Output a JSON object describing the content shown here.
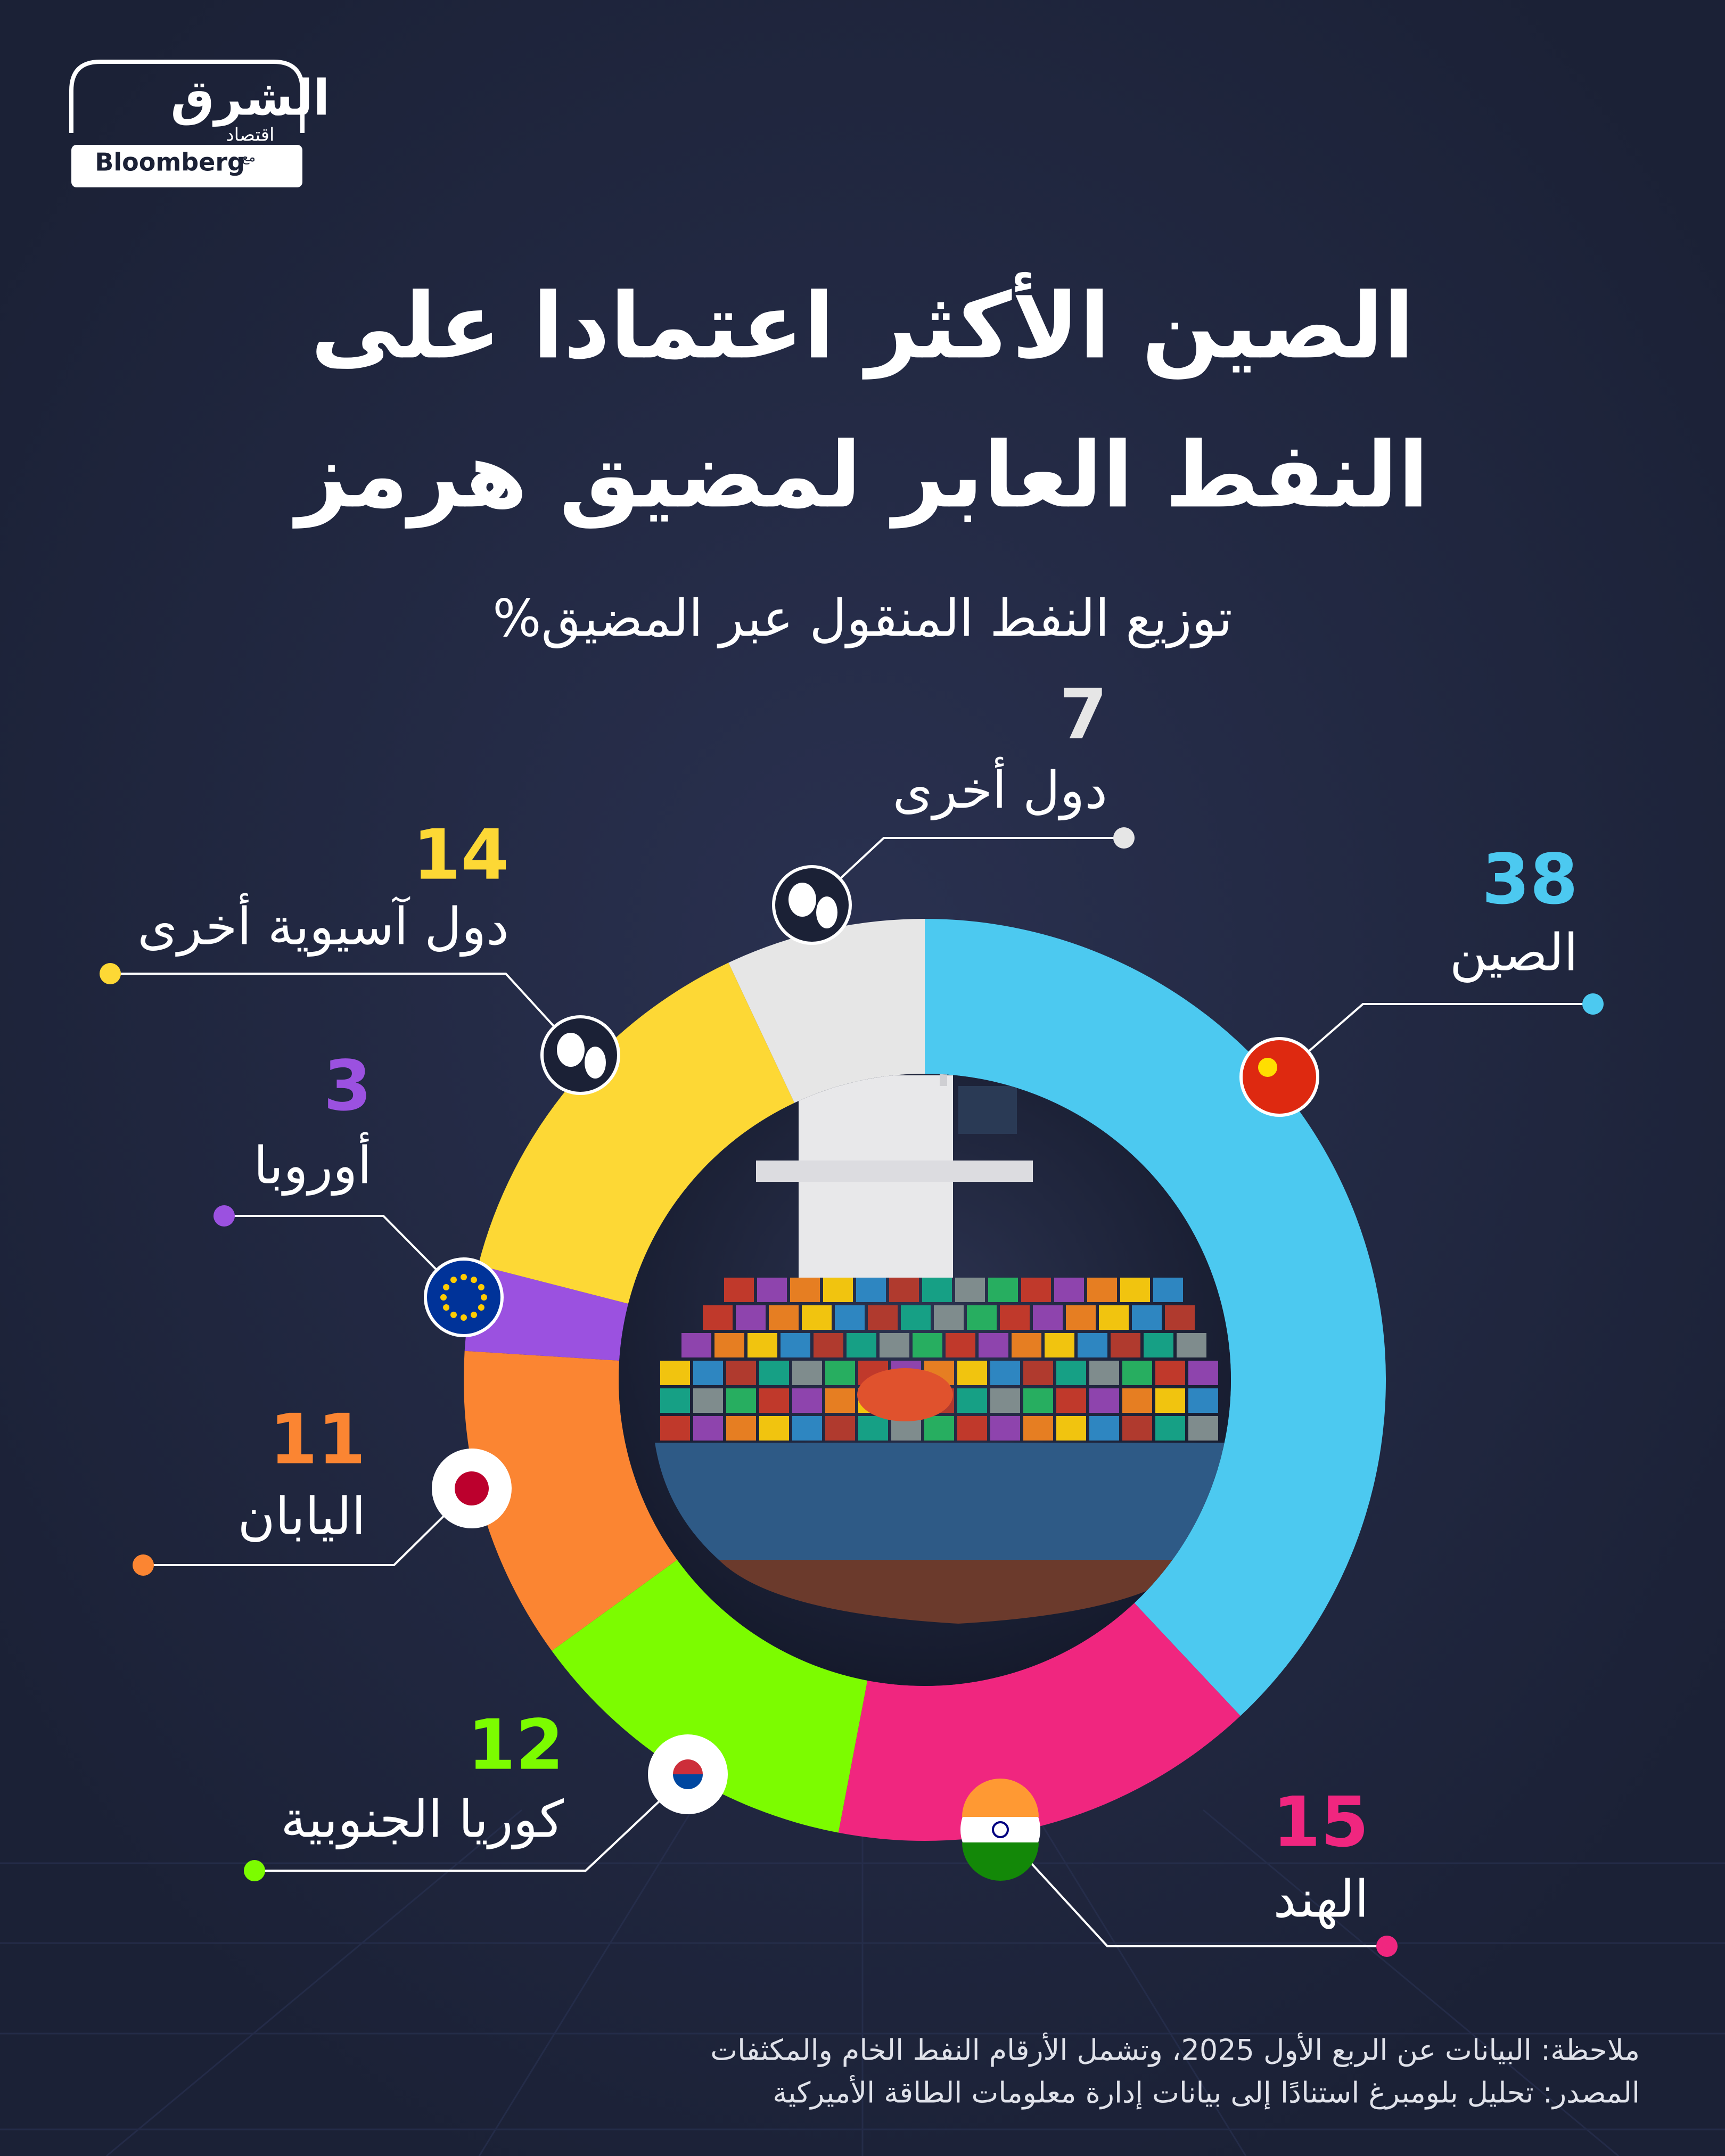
{
  "logo": {
    "name": "الشرق",
    "section": "اقتصاد",
    "with": "مع",
    "partner": "Bloomberg"
  },
  "chart_data": {
    "type": "pie",
    "title": [
      "الصين الأكثر اعتمادا على",
      "النفط العابر لمضيق هرمز"
    ],
    "subtitle": "توزيع النفط المنقول عبر المضيق%",
    "categories": [
      "الصين",
      "الهند",
      "كوريا الجنوبية",
      "اليابان",
      "أوروبا",
      "دول آسيوية أخرى",
      "دول أخرى"
    ],
    "values": [
      38,
      15,
      12,
      11,
      3,
      14,
      7
    ],
    "colors": [
      "#4cc9f0",
      "#f0267f",
      "#7cfc00",
      "#fb8532",
      "#9b51e0",
      "#fdd835",
      "#e6e6e6"
    ],
    "note": "ملاحظة: البيانات عن الربع الأول 2025، وتشمل الأرقام النفط الخام والمكثفات",
    "source": "المصدر: تحليل بلومبرغ استنادًا إلى بيانات إدارة معلومات الطاقة الأميركية"
  }
}
